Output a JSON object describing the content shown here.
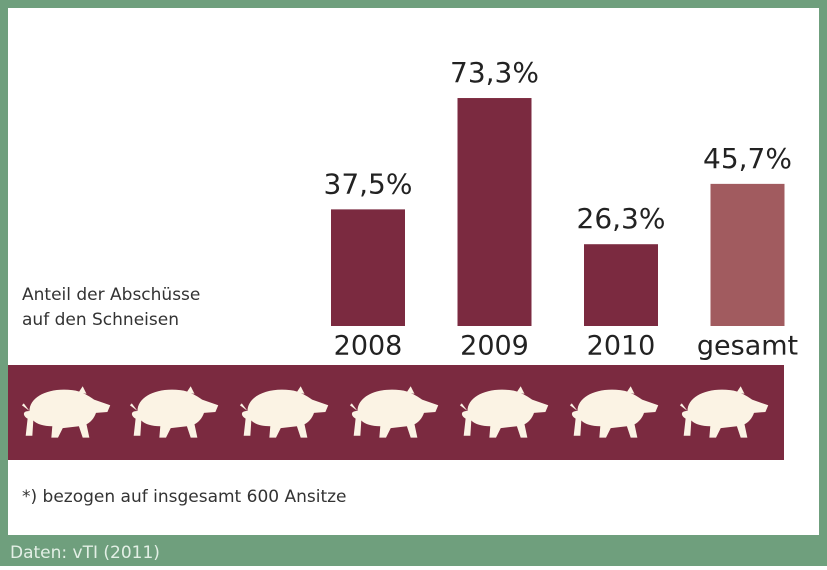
{
  "chart_data": {
    "type": "bar",
    "annotation": [
      "Anteil der Abschüsse",
      "auf den Schneisen"
    ],
    "categories": [
      "2008",
      "2009",
      "2010",
      "gesamt"
    ],
    "values": [
      37.5,
      73.3,
      26.3,
      45.7
    ],
    "value_labels": [
      "37,5%",
      "73,3%",
      "26,3%",
      "45,7%"
    ],
    "colors": [
      "#7b2a40",
      "#7b2a40",
      "#7b2a40",
      "#a15b5f"
    ],
    "footnote": "*) bezogen auf insgesamt 600 Ansitze",
    "source": "Daten: vTI (2011)"
  }
}
